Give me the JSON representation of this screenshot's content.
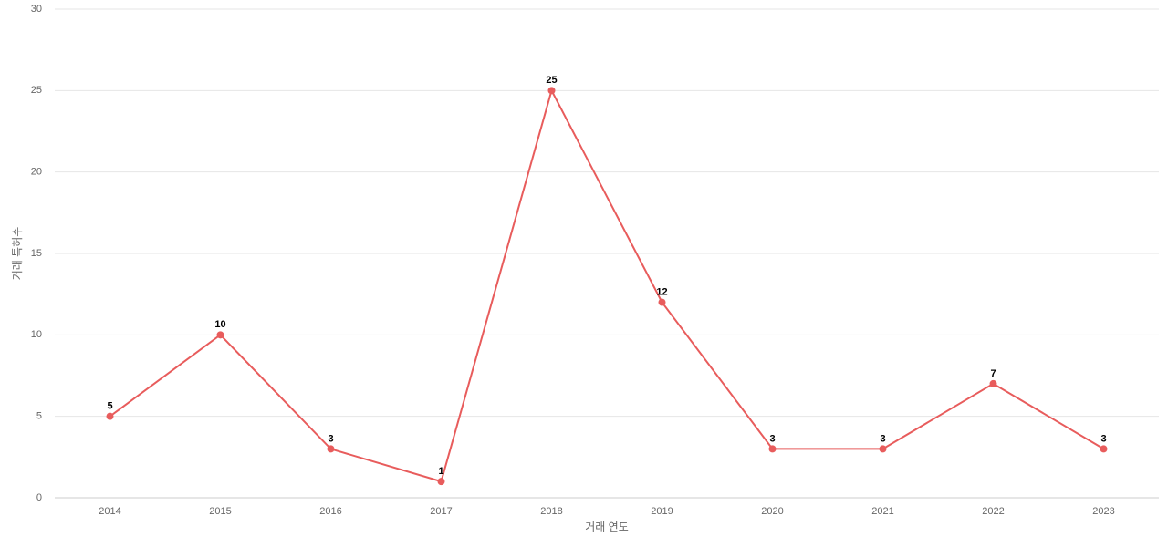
{
  "chart_data": {
    "type": "line",
    "x_label": "거래 연도",
    "y_label": "거래 특허수",
    "categories": [
      "2014",
      "2015",
      "2016",
      "2017",
      "2018",
      "2019",
      "2020",
      "2021",
      "2022",
      "2023"
    ],
    "series": [
      {
        "name": "거래 특허수",
        "color": "#e85c5c",
        "values": [
          5,
          10,
          3,
          1,
          25,
          12,
          3,
          3,
          7,
          3
        ]
      }
    ],
    "ylim": [
      0,
      30
    ],
    "yticks": [
      0,
      5,
      10,
      15,
      20,
      25,
      30
    ],
    "grid": true
  }
}
